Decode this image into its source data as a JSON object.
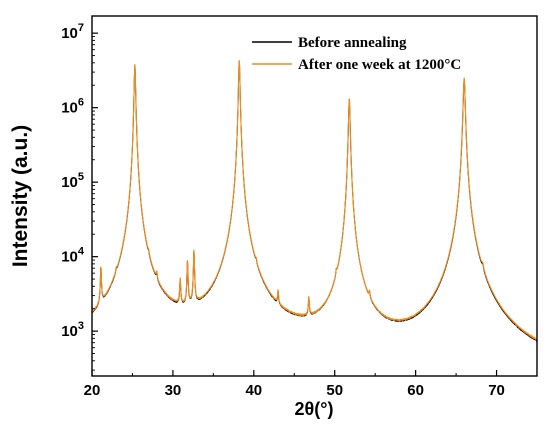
{
  "chart_data": {
    "type": "line",
    "title": "",
    "xlabel": "2θ(°)",
    "ylabel": "Intensity (a.u.)",
    "xlim": [
      20,
      75
    ],
    "ylim": [
      250,
      17000000
    ],
    "yscale": "log",
    "x_ticks": [
      20,
      30,
      40,
      50,
      60,
      70
    ],
    "x_tick_labels": [
      "20",
      "30",
      "40",
      "50",
      "60",
      "70"
    ],
    "y_ticks": [
      1000,
      10000,
      100000,
      1000000,
      10000000
    ],
    "y_tick_labels": [
      {
        "base": "10",
        "exp": "3"
      },
      {
        "base": "10",
        "exp": "4"
      },
      {
        "base": "10",
        "exp": "5"
      },
      {
        "base": "10",
        "exp": "6"
      },
      {
        "base": "10",
        "exp": "7"
      }
    ],
    "grid": false,
    "legend_position": "top-right",
    "series": [
      {
        "name": "Before annealing",
        "color": "#000000",
        "baseline": [
          [
            20,
            560
          ],
          [
            22,
            540
          ],
          [
            24,
            560
          ],
          [
            26,
            570
          ],
          [
            28,
            600
          ],
          [
            30,
            640
          ],
          [
            32,
            650
          ],
          [
            34,
            640
          ],
          [
            36,
            620
          ],
          [
            37,
            650
          ],
          [
            40,
            570
          ],
          [
            42,
            550
          ],
          [
            44,
            540
          ],
          [
            46,
            520
          ],
          [
            48,
            490
          ],
          [
            50,
            460
          ],
          [
            53,
            430
          ],
          [
            56,
            400
          ],
          [
            60,
            370
          ],
          [
            63,
            380
          ],
          [
            65,
            420
          ],
          [
            68,
            360
          ],
          [
            71,
            290
          ],
          [
            73,
            270
          ],
          [
            75,
            260
          ]
        ],
        "peaks": [
          [
            21.1,
            4800,
            0.07
          ],
          [
            23.0,
            700,
            0.07
          ],
          [
            24.8,
            1300,
            0.07
          ],
          [
            25.3,
            3700000,
            0.09
          ],
          [
            27.0,
            1100,
            0.07
          ],
          [
            28.0,
            1200,
            0.07
          ],
          [
            30.9,
            2700,
            0.07
          ],
          [
            31.8,
            6500,
            0.07
          ],
          [
            32.6,
            9500,
            0.07
          ],
          [
            38.2,
            4200000,
            0.09
          ],
          [
            40.3,
            1050,
            0.07
          ],
          [
            43.0,
            1100,
            0.07
          ],
          [
            46.8,
            1200,
            0.07
          ],
          [
            50.2,
            1000,
            0.07
          ],
          [
            51.8,
            1300000,
            0.1
          ],
          [
            54.3,
            600,
            0.07
          ],
          [
            66.0,
            2400000,
            0.12
          ],
          [
            68.3,
            1050,
            0.12
          ]
        ]
      },
      {
        "name": "After one week at 1200°C",
        "color": "#f28c1a",
        "baseline": [
          [
            20,
            560
          ],
          [
            22,
            545
          ],
          [
            24,
            570
          ],
          [
            26,
            580
          ],
          [
            28,
            620
          ],
          [
            30,
            660
          ],
          [
            32,
            670
          ],
          [
            34,
            660
          ],
          [
            36,
            640
          ],
          [
            37,
            660
          ],
          [
            40,
            590
          ],
          [
            42,
            565
          ],
          [
            44,
            550
          ],
          [
            46,
            530
          ],
          [
            48,
            500
          ],
          [
            50,
            470
          ],
          [
            53,
            440
          ],
          [
            56,
            410
          ],
          [
            60,
            380
          ],
          [
            63,
            390
          ],
          [
            65,
            430
          ],
          [
            68,
            370
          ],
          [
            71,
            300
          ],
          [
            73,
            275
          ],
          [
            75,
            265
          ]
        ],
        "peaks": [
          [
            21.1,
            4800,
            0.07
          ],
          [
            23.0,
            720,
            0.07
          ],
          [
            24.8,
            1350,
            0.07
          ],
          [
            25.3,
            3800000,
            0.09
          ],
          [
            27.0,
            1150,
            0.07
          ],
          [
            28.0,
            1250,
            0.07
          ],
          [
            30.9,
            2800,
            0.07
          ],
          [
            31.8,
            6500,
            0.07
          ],
          [
            32.6,
            9800,
            0.07
          ],
          [
            38.2,
            4300000,
            0.09
          ],
          [
            40.3,
            1050,
            0.07
          ],
          [
            43.0,
            1150,
            0.07
          ],
          [
            46.8,
            1200,
            0.07
          ],
          [
            50.2,
            1050,
            0.07
          ],
          [
            51.8,
            1300000,
            0.1
          ],
          [
            54.3,
            620,
            0.07
          ],
          [
            66.0,
            2500000,
            0.12
          ],
          [
            68.3,
            1100,
            0.12
          ]
        ]
      }
    ]
  }
}
